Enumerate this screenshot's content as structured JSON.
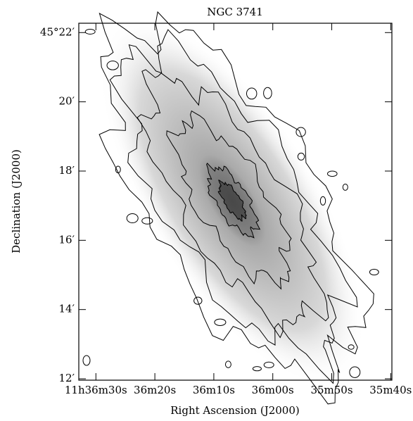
{
  "chart_data": {
    "type": "contour",
    "title": "NGC 3741",
    "x_label": "Right Ascension (J2000)",
    "y_label": "Declination (J2000)",
    "xlim": [
      41792.9,
      41739.8
    ],
    "xticks": [
      {
        "value": 41790,
        "label": "11h36m30s"
      },
      {
        "value": 41780,
        "label": "36m20s"
      },
      {
        "value": 41770,
        "label": "36m10s"
      },
      {
        "value": 41760,
        "label": "36m00s"
      },
      {
        "value": 41750,
        "label": "35m50s"
      },
      {
        "value": 41740,
        "label": "35m40s"
      }
    ],
    "ylim": [
      11.96,
      22.27
    ],
    "yticks": [
      {
        "value": 12,
        "label": "12′"
      },
      {
        "value": 14,
        "label": "14′"
      },
      {
        "value": 16,
        "label": "16′"
      },
      {
        "value": 18,
        "label": "18′"
      },
      {
        "value": 20,
        "label": "20′"
      },
      {
        "value": 22,
        "label": "45°22′"
      }
    ]
  }
}
